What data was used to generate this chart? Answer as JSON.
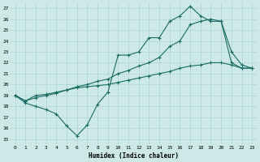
{
  "xlabel": "Humidex (Indice chaleur)",
  "xlim": [
    -0.5,
    23.5
  ],
  "ylim": [
    14.5,
    27.5
  ],
  "yticks": [
    15,
    16,
    17,
    18,
    19,
    20,
    21,
    22,
    23,
    24,
    25,
    26,
    27
  ],
  "xticks": [
    0,
    1,
    2,
    3,
    4,
    5,
    6,
    7,
    8,
    9,
    10,
    11,
    12,
    13,
    14,
    15,
    16,
    17,
    18,
    19,
    20,
    21,
    22,
    23
  ],
  "bg_color": "#cce9e8",
  "grid_color": "#aed4d2",
  "line_color": "#1a6b63",
  "line1_x": [
    0,
    1,
    2,
    3,
    4,
    5,
    6,
    7,
    8,
    9,
    10,
    11,
    12,
    13,
    14,
    15,
    16,
    17,
    18,
    19,
    20,
    21,
    22,
    23
  ],
  "line1_y": [
    19,
    18.3,
    18,
    17.7,
    17.3,
    16.2,
    15.3,
    16.3,
    18.2,
    19.3,
    22.7,
    22.7,
    23,
    24.3,
    24.3,
    25.8,
    26.3,
    27.2,
    26.3,
    25.8,
    25.8,
    23,
    21.8,
    21.5
  ],
  "line2_x": [
    0,
    1,
    2,
    3,
    4,
    5,
    6,
    7,
    8,
    9,
    10,
    11,
    12,
    13,
    14,
    15,
    16,
    17,
    18,
    19,
    20,
    21,
    22,
    23
  ],
  "line2_y": [
    19,
    18.5,
    19.0,
    19.1,
    19.3,
    19.5,
    19.7,
    19.8,
    19.9,
    20.0,
    20.2,
    20.4,
    20.6,
    20.8,
    21.0,
    21.2,
    21.5,
    21.7,
    21.8,
    22.0,
    22.0,
    21.8,
    21.5,
    21.5
  ],
  "line3_x": [
    0,
    1,
    2,
    3,
    4,
    5,
    6,
    7,
    8,
    9,
    10,
    11,
    12,
    13,
    14,
    15,
    16,
    17,
    18,
    19,
    20,
    21,
    22,
    23
  ],
  "line3_y": [
    19,
    18.5,
    18.8,
    19.0,
    19.2,
    19.5,
    19.8,
    20.0,
    20.3,
    20.5,
    21.0,
    21.3,
    21.7,
    22.0,
    22.5,
    23.5,
    24.0,
    25.5,
    25.8,
    26.0,
    25.8,
    22.0,
    21.5,
    21.5
  ]
}
